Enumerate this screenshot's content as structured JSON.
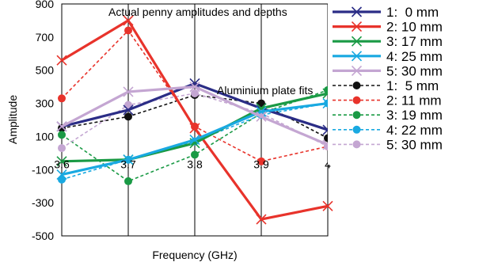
{
  "chart_data": {
    "type": "line",
    "title": "",
    "xlabel": "Frequency (GHz)",
    "ylabel": "Amplitude",
    "xlim": [
      3.6,
      4.0
    ],
    "ylim": [
      -500,
      900
    ],
    "x_ticks": [
      "3.6",
      "3.7",
      "3.8",
      "3.9",
      "4"
    ],
    "y_ticks": [
      "-500",
      "-300",
      "-100",
      "100",
      "300",
      "500",
      "700",
      "900"
    ],
    "grid": "vertical only",
    "annotations": [
      "Actual penny amplitudes and depths",
      "Aluminium plate fits"
    ],
    "legend_position": "right",
    "x": [
      3.6,
      3.7,
      3.8,
      3.9,
      4.0
    ],
    "series": [
      {
        "name": "1:  0 mm",
        "color": "#2b2d86",
        "dash": "solid",
        "marker": "x",
        "values": [
          160,
          260,
          420,
          270,
          140
        ]
      },
      {
        "name": "2: 10 mm",
        "color": "#e8332b",
        "dash": "solid",
        "marker": "x",
        "values": [
          560,
          800,
          150,
          -400,
          -320
        ]
      },
      {
        "name": "3: 17 mm",
        "color": "#1a9a45",
        "dash": "solid",
        "marker": "x",
        "values": [
          -50,
          -40,
          60,
          270,
          360
        ]
      },
      {
        "name": "4: 25 mm",
        "color": "#19a9e1",
        "dash": "solid",
        "marker": "x",
        "values": [
          -130,
          -40,
          80,
          250,
          300
        ]
      },
      {
        "name": "5: 30 mm",
        "color": "#c4a6d2",
        "dash": "solid",
        "marker": "x",
        "values": [
          160,
          370,
          400,
          220,
          50
        ]
      },
      {
        "name": "1:  5 mm",
        "color": "#111111",
        "dash": "dashed",
        "marker": "dot",
        "values": [
          150,
          220,
          350,
          300,
          90
        ]
      },
      {
        "name": "2: 11 mm",
        "color": "#e8332b",
        "dash": "dashed",
        "marker": "dot",
        "values": [
          330,
          740,
          160,
          -50,
          40
        ]
      },
      {
        "name": "3: 19 mm",
        "color": "#1a9a45",
        "dash": "dashed",
        "marker": "dot",
        "values": [
          110,
          -170,
          -10,
          240,
          380
        ]
      },
      {
        "name": "4: 22 mm",
        "color": "#19a9e1",
        "dash": "dashed",
        "marker": "dot",
        "values": [
          -160,
          -40,
          70,
          230,
          300
        ]
      },
      {
        "name": "5: 30 mm",
        "color": "#c4a6d2",
        "dash": "dashed",
        "marker": "dot",
        "values": [
          30,
          290,
          360,
          240,
          40
        ]
      }
    ]
  }
}
